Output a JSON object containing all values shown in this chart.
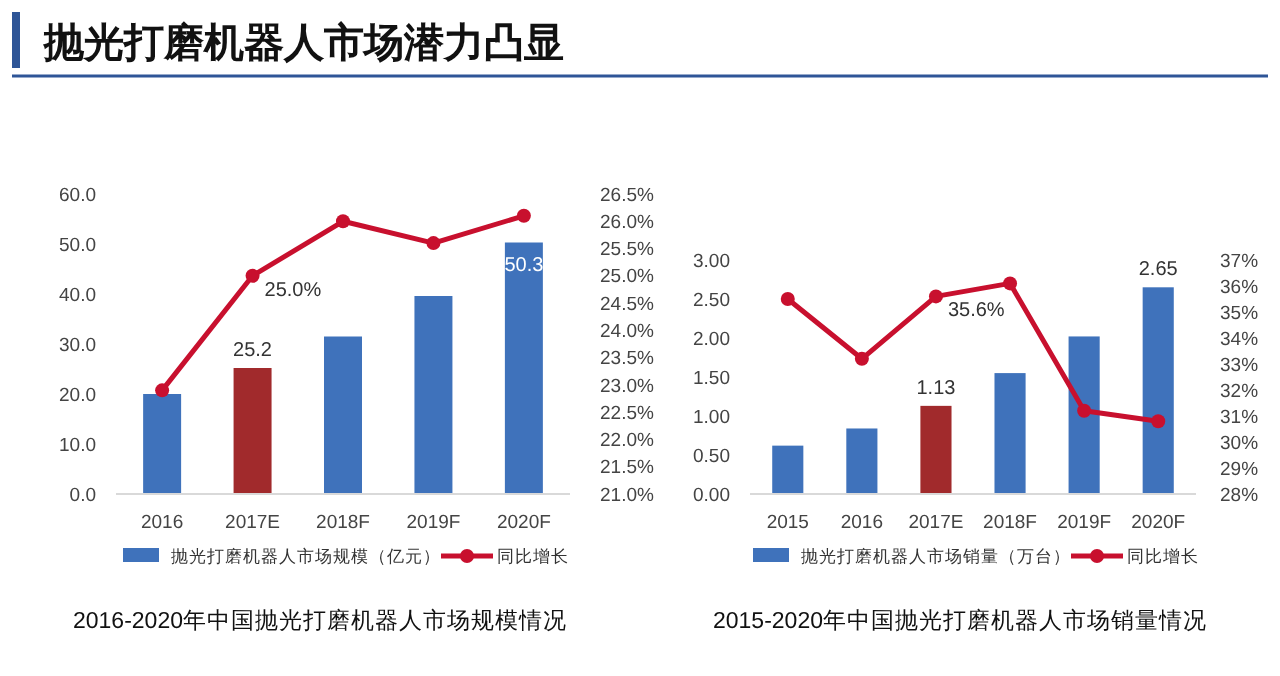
{
  "chart_data": [
    {
      "type": "bar",
      "title": "2016-2020年中国抛光打磨机器人市场规模情况",
      "annotations": [
        "抛光打磨机器人市场潜力凸显"
      ],
      "categories": [
        "2016",
        "2017E",
        "2018F",
        "2019F",
        "2020F"
      ],
      "series": [
        {
          "name": "抛光打磨机器人市场规模（亿元）",
          "color": "#3f72bb",
          "colors": [
            "#3f72bb",
            "#a12a2c",
            "#3f72bb",
            "#3f72bb",
            "#3f72bb"
          ],
          "values": [
            20.0,
            25.2,
            31.5,
            39.6,
            50.3
          ],
          "value_labels": [
            null,
            "25.2",
            null,
            null,
            "50.3"
          ]
        },
        {
          "type": "line",
          "name": "同比增长",
          "color": "#c8102e",
          "axis": "y2",
          "values": [
            22.9,
            25.0,
            26.0,
            25.6,
            26.1
          ],
          "value_labels": [
            null,
            "25.0%",
            null,
            null,
            null
          ]
        }
      ],
      "ylim": [
        0,
        60
      ],
      "yticks": [
        {
          "value": 0,
          "label": "0.0"
        },
        {
          "value": 10,
          "label": "10.0"
        },
        {
          "value": 20,
          "label": "20.0"
        },
        {
          "value": 30,
          "label": "30.0"
        },
        {
          "value": 40,
          "label": "40.0"
        },
        {
          "value": 50,
          "label": "50.0"
        },
        {
          "value": 60,
          "label": "60.0"
        }
      ],
      "y2lim": [
        21,
        26.5
      ],
      "y2ticks": [
        {
          "value": 21,
          "label": "21.0%"
        },
        {
          "value": 21.5,
          "label": "21.5%"
        },
        {
          "value": 22,
          "label": "22.0%"
        },
        {
          "value": 22.5,
          "label": "22.5%"
        },
        {
          "value": 23,
          "label": "23.0%"
        },
        {
          "value": 23.5,
          "label": "23.5%"
        },
        {
          "value": 24,
          "label": "24.0%"
        },
        {
          "value": 24.5,
          "label": "24.5%"
        },
        {
          "value": 25,
          "label": "25.0%"
        },
        {
          "value": 25.5,
          "label": "25.5%"
        },
        {
          "value": 26,
          "label": "26.0%"
        },
        {
          "value": 26.5,
          "label": "26.5%"
        }
      ],
      "legend": "bottom",
      "marker": "circle"
    },
    {
      "type": "bar",
      "title": "2015-2020年中国抛光打磨机器人市场销量情况",
      "categories": [
        "2015",
        "2016",
        "2017E",
        "2018F",
        "2019F",
        "2020F"
      ],
      "series": [
        {
          "name": "抛光打磨机器人市场销量（万台）",
          "color": "#3f72bb",
          "colors": [
            "#3f72bb",
            "#3f72bb",
            "#a12a2c",
            "#3f72bb",
            "#3f72bb",
            "#3f72bb"
          ],
          "values": [
            0.62,
            0.84,
            1.13,
            1.55,
            2.02,
            2.65
          ],
          "value_labels": [
            null,
            null,
            "1.13",
            null,
            null,
            "2.65"
          ]
        },
        {
          "type": "line",
          "name": "同比增长",
          "color": "#c8102e",
          "axis": "y2",
          "values": [
            35.5,
            33.2,
            35.6,
            36.1,
            31.2,
            30.8
          ],
          "value_labels": [
            null,
            null,
            "35.6%",
            null,
            null,
            null
          ]
        }
      ],
      "ylim": [
        0,
        3
      ],
      "yticks": [
        {
          "value": 0,
          "label": "0.00"
        },
        {
          "value": 0.5,
          "label": "0.50"
        },
        {
          "value": 1,
          "label": "1.00"
        },
        {
          "value": 1.5,
          "label": "1.50"
        },
        {
          "value": 2,
          "label": "2.00"
        },
        {
          "value": 2.5,
          "label": "2.50"
        },
        {
          "value": 3,
          "label": "3.00"
        }
      ],
      "y2lim": [
        28,
        37
      ],
      "y2ticks": [
        {
          "value": 28,
          "label": "28%"
        },
        {
          "value": 29,
          "label": "29%"
        },
        {
          "value": 30,
          "label": "30%"
        },
        {
          "value": 31,
          "label": "31%"
        },
        {
          "value": 32,
          "label": "32%"
        },
        {
          "value": 33,
          "label": "33%"
        },
        {
          "value": 34,
          "label": "34%"
        },
        {
          "value": 35,
          "label": "35%"
        },
        {
          "value": 36,
          "label": "36%"
        },
        {
          "value": 37,
          "label": "37%"
        }
      ],
      "legend": "bottom",
      "marker": "circle"
    }
  ]
}
